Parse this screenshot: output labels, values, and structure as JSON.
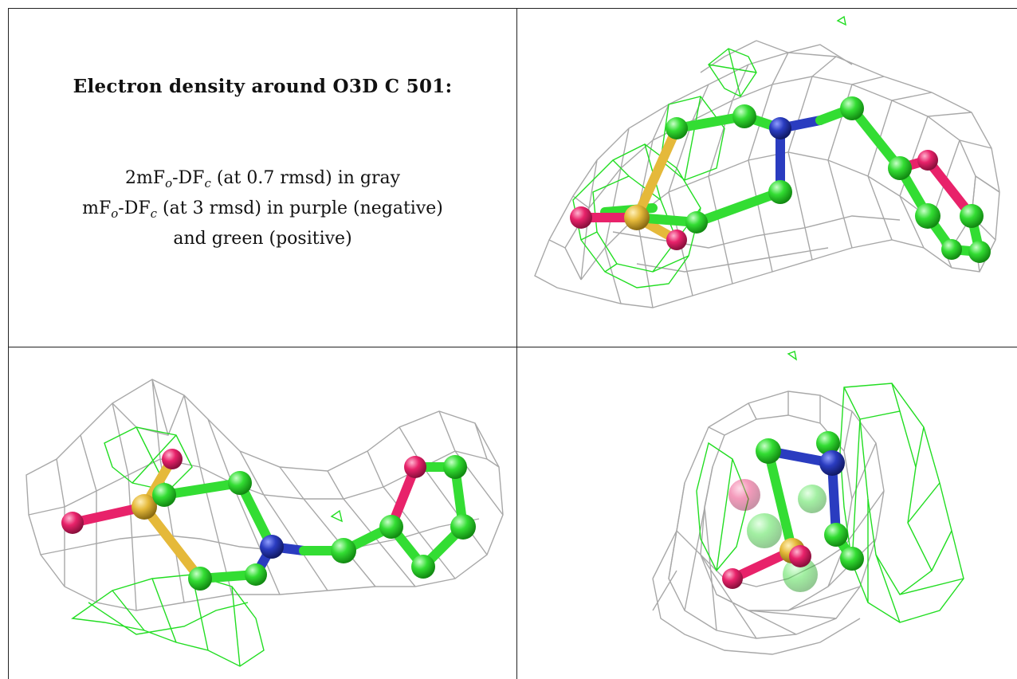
{
  "title": "Electron density around O3D C 501:",
  "legend": {
    "line1": {
      "pre": "2mF",
      "sub1": "o",
      "mid": "-DF",
      "sub2": "c",
      "post": " (at 0.7 rmsd) in gray"
    },
    "line2": {
      "pre": "mF",
      "sub1": "o",
      "mid": "-DF",
      "sub2": "c",
      "post": " (at 3 rmsd) in purple (negative)"
    },
    "line3": "and green (positive)"
  },
  "colors": {
    "carbon": "#33dd33",
    "nitrogen": "#2a3cc0",
    "oxygen": "#e8226a",
    "sulfur": "#e5b93a",
    "density_2fofc": "#a8a8a8",
    "density_fofc_positive": "#22dd22",
    "density_fofc_negative": "#a020f0"
  },
  "panels": [
    {
      "name": "view-top-right"
    },
    {
      "name": "view-bottom-left"
    },
    {
      "name": "view-bottom-right"
    }
  ]
}
